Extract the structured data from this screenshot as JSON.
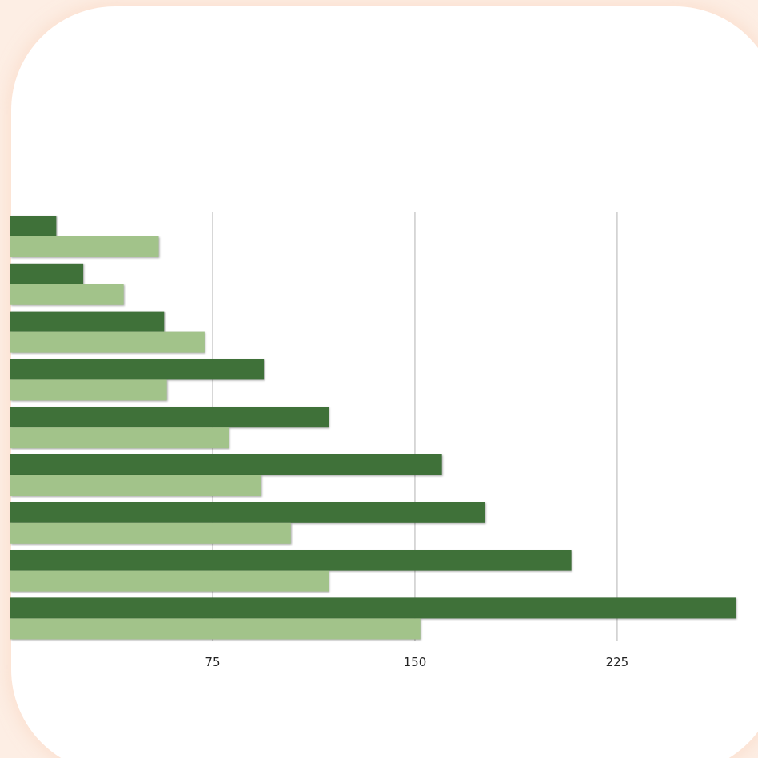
{
  "colors": {
    "page_background": "#fdeee4",
    "card_background": "#ffffff",
    "series_dark": "#3f7139",
    "series_light": "#a2c38a",
    "gridline": "#b3b3b3",
    "tick_text": "#222222"
  },
  "chart_data": {
    "type": "bar",
    "orientation": "horizontal",
    "categories": [
      "",
      "",
      "",
      "",
      "",
      "",
      "",
      "",
      ""
    ],
    "series": [
      {
        "values": [
          17,
          27,
          57,
          94,
          118,
          160,
          176,
          208,
          269
        ]
      },
      {
        "values": [
          55,
          42,
          72,
          58,
          81,
          93,
          104,
          118,
          152
        ]
      }
    ],
    "xlim": [
      0,
      275
    ],
    "xticks": [
      75,
      150,
      225
    ],
    "xtick_labels": [
      "75",
      "150",
      "225"
    ],
    "grid": true,
    "legend": "none",
    "title": "",
    "xlabel": "",
    "ylabel": ""
  }
}
